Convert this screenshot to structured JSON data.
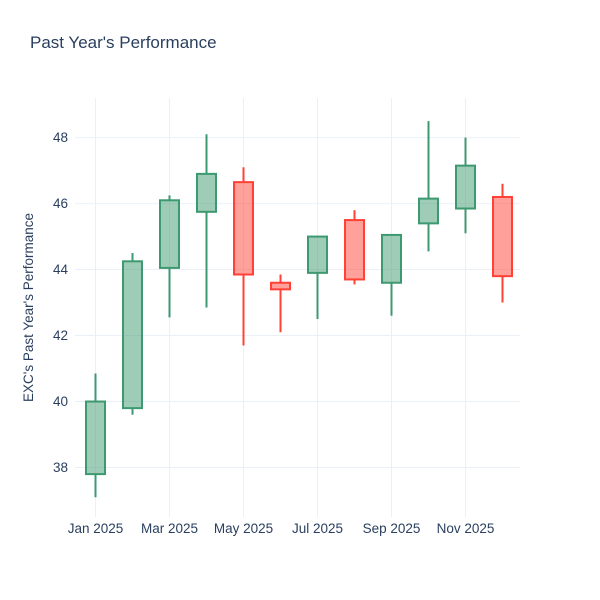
{
  "title": "Past Year's Performance",
  "chart_data": {
    "type": "candlestick",
    "title": "Past Year's Performance",
    "xlabel": "",
    "ylabel": "EXC's Past Year's Performance",
    "x": [
      "Jan 2025",
      "Feb 2025",
      "Mar 2025",
      "Apr 2025",
      "May 2025",
      "Jun 2025",
      "Jul 2025",
      "Aug 2025",
      "Sep 2025",
      "Oct 2025",
      "Nov 2025",
      "Dec 2025"
    ],
    "open": [
      37.8,
      39.8,
      44.05,
      45.75,
      46.65,
      43.6,
      43.9,
      45.5,
      43.6,
      45.4,
      45.85,
      46.2
    ],
    "high": [
      40.85,
      44.5,
      46.25,
      48.1,
      47.1,
      43.85,
      45.0,
      45.8,
      45.05,
      48.5,
      48.0,
      46.6
    ],
    "low": [
      37.1,
      39.6,
      42.55,
      42.85,
      41.7,
      42.1,
      42.5,
      43.55,
      42.6,
      44.55,
      45.1,
      43.0
    ],
    "close": [
      40.0,
      44.25,
      46.1,
      46.9,
      43.85,
      43.4,
      45.0,
      43.7,
      45.05,
      46.15,
      47.15,
      43.8
    ],
    "yticks": [
      38,
      40,
      42,
      44,
      46,
      48
    ],
    "xtick_labels": [
      "Jan 2025",
      "Mar 2025",
      "May 2025",
      "Jul 2025",
      "Sep 2025",
      "Nov 2025"
    ],
    "ylim": [
      36.5,
      49.2
    ],
    "grid": true,
    "legend": "none",
    "increasing_color": "#3D9970",
    "decreasing_color": "#FF4136"
  },
  "colors": {
    "text": "#2a3f5f",
    "grid": "#ebf0f8",
    "background": "#ffffff"
  }
}
